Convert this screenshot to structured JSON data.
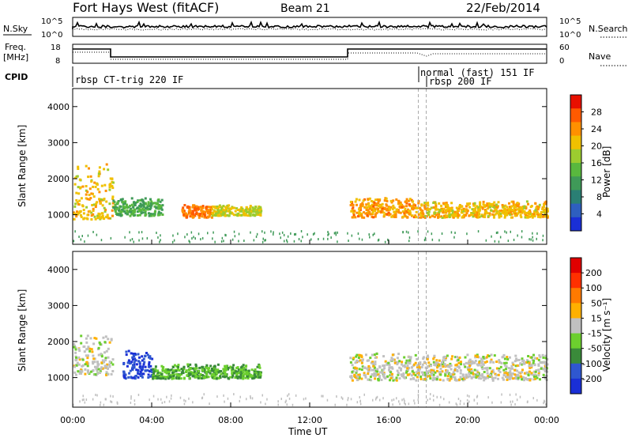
{
  "header": {
    "title": "Fort Hays West (fitACF)",
    "beam": "Beam 21",
    "date": "22/Feb/2014"
  },
  "panels": {
    "noise": {
      "left_label": "N.Sky",
      "right_label": "N.Search",
      "left_ticks": [
        "10^5",
        "10^0"
      ],
      "right_ticks": [
        "10^5",
        "10^0"
      ]
    },
    "freq": {
      "left_label_1": "Freq.",
      "left_label_2": "[MHz]",
      "left_ticks": [
        "18",
        "8"
      ],
      "right_label": "Nave",
      "right_ticks": [
        "60",
        "0"
      ]
    },
    "cpid": {
      "label": "CPID",
      "modes": [
        "rbsp CT-trig 220 IF",
        "normal (fast) 151 IF",
        "rbsp 200 IF"
      ]
    },
    "power": {
      "ylabel": "Slant Range [km]",
      "cbar_label": "Power [dB]",
      "cbar_ticks": [
        "28",
        "24",
        "20",
        "16",
        "12",
        "8",
        "4"
      ],
      "cbar_colors": [
        "#1a2fd6",
        "#2e5fbf",
        "#2a7f74",
        "#3f9a58",
        "#59b83e",
        "#9ccc2f",
        "#f0c000",
        "#ff9000",
        "#ff5a00",
        "#e81000"
      ]
    },
    "velocity": {
      "ylabel": "Slant Range [km]",
      "cbar_label": "Velocity [m s⁻¹]",
      "cbar_ticks": [
        "200",
        "100",
        "50",
        "15",
        "-15",
        "-50",
        "-100",
        "-200"
      ],
      "cbar_colors": [
        "#1a2fd6",
        "#2f57d0",
        "#3a8a3a",
        "#6ccf2e",
        "#c0c0c0",
        "#ffb000",
        "#ff7a00",
        "#ff3000",
        "#e00000"
      ]
    }
  },
  "xaxis": {
    "label": "Time UT",
    "ticks": [
      "00:00",
      "04:00",
      "08:00",
      "12:00",
      "16:00",
      "20:00",
      "00:00"
    ]
  },
  "chart_data": [
    {
      "type": "heatmap",
      "title": "Power [dB]",
      "xlabel": "Time UT",
      "ylabel": "Slant Range [km]",
      "xlim": [
        0,
        24
      ],
      "ylim": [
        180,
        4500
      ],
      "y_ticks": [
        1000,
        2000,
        3000,
        4000
      ],
      "colorbar_range": [
        0,
        30
      ],
      "features": [
        {
          "time": [
            0.0,
            2.0
          ],
          "range": [
            900,
            2500
          ],
          "value": 20
        },
        {
          "time": [
            2.0,
            4.5
          ],
          "range": [
            1000,
            1500
          ],
          "value": 12
        },
        {
          "time": [
            5.5,
            7.0
          ],
          "range": [
            950,
            1300
          ],
          "value": 24
        },
        {
          "time": [
            7.0,
            9.5
          ],
          "range": [
            1000,
            1300
          ],
          "value": 18
        },
        {
          "time": [
            14.0,
            17.5
          ],
          "range": [
            950,
            1500
          ],
          "value": 22
        },
        {
          "time": [
            17.5,
            24.0
          ],
          "range": [
            950,
            1400
          ],
          "value": 20
        }
      ]
    },
    {
      "type": "heatmap",
      "title": "Velocity [m s-1]",
      "xlabel": "Time UT",
      "ylabel": "Slant Range [km]",
      "xlim": [
        0,
        24
      ],
      "ylim": [
        180,
        4500
      ],
      "y_ticks": [
        1000,
        2000,
        3000,
        4000
      ],
      "colorbar_range": [
        -200,
        200
      ],
      "features": [
        {
          "time": [
            0.0,
            2.0
          ],
          "range": [
            1100,
            2200
          ],
          "value": 0
        },
        {
          "time": [
            2.5,
            4.0
          ],
          "range": [
            1000,
            1800
          ],
          "value": -150
        },
        {
          "time": [
            4.0,
            9.5
          ],
          "range": [
            1000,
            1400
          ],
          "value": -60
        },
        {
          "time": [
            14.0,
            24.0
          ],
          "range": [
            950,
            1700
          ],
          "value": 0
        }
      ]
    }
  ]
}
